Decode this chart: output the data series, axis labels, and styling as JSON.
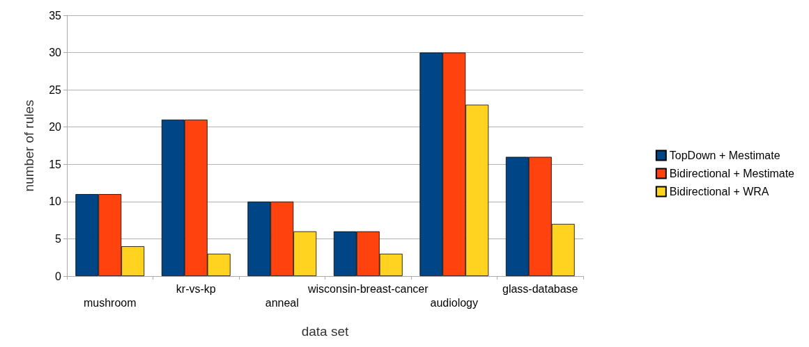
{
  "chart_data": {
    "type": "bar",
    "xlabel": "data set",
    "ylabel": "number of rules",
    "categories": [
      "mushroom",
      "kr-vs-kp",
      "anneal",
      "wisconsin-breast-cancer",
      "audiology",
      "glass-database"
    ],
    "series": [
      {
        "name": "TopDown + Mestimate",
        "color": "#004586",
        "values": [
          11,
          21,
          10,
          6,
          30,
          16
        ]
      },
      {
        "name": "Bidirectional + Mestimate",
        "color": "#ff420e",
        "values": [
          11,
          21,
          10,
          6,
          30,
          16
        ]
      },
      {
        "name": "Bidirectional + WRA",
        "color": "#ffd320",
        "values": [
          4,
          3,
          6,
          3,
          23,
          7
        ]
      }
    ],
    "ylim": [
      0,
      35
    ],
    "yticks": [
      0,
      5,
      10,
      15,
      20,
      25,
      30,
      35
    ],
    "grid": "y",
    "legend": "right"
  }
}
